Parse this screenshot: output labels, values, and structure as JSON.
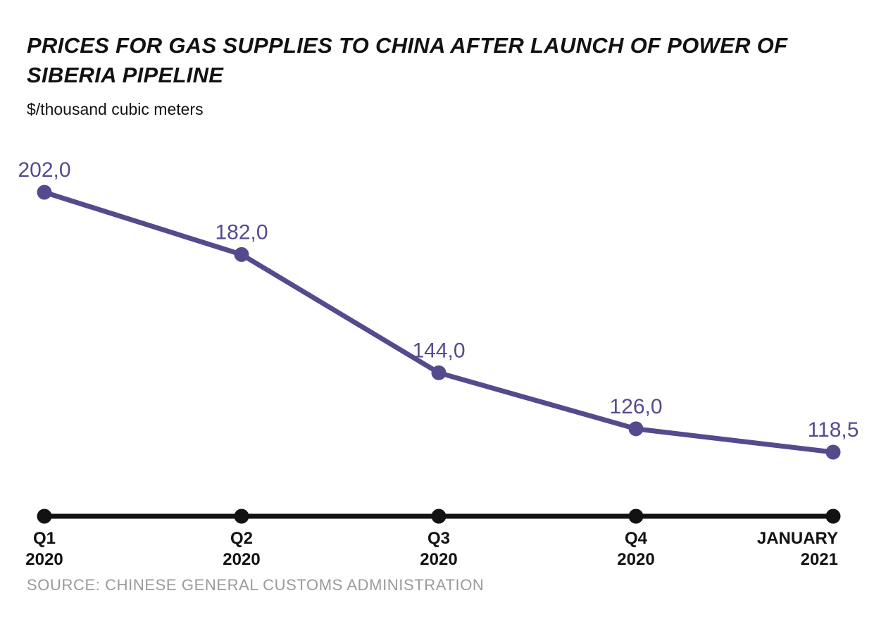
{
  "header": {
    "title": "PRICES FOR GAS SUPPLIES TO CHINA AFTER LAUNCH OF POWER OF SIBERIA PIPELINE",
    "title_lines": [
      "PRICES FOR GAS SUPPLIES TO CHINA AFTER LAUNCH OF POWER OF",
      "SIBERIA PIPELINE"
    ],
    "units_label": "$/thousand cubic meters"
  },
  "chart_data": {
    "type": "line",
    "title": "PRICES FOR GAS SUPPLIES TO CHINA AFTER LAUNCH OF POWER OF SIBERIA PIPELINE",
    "ylabel": "$/thousand cubic meters",
    "categories": [
      [
        "Q1",
        "2020"
      ],
      [
        "Q2",
        "2020"
      ],
      [
        "Q3",
        "2020"
      ],
      [
        "Q4",
        "2020"
      ],
      [
        "JANUARY",
        "2021"
      ]
    ],
    "values": [
      202.0,
      182.0,
      144.0,
      126.0,
      118.5
    ],
    "point_labels": [
      "202,0",
      "182,0",
      "144,0",
      "126,0",
      "118,5"
    ],
    "ylim": [
      118.5,
      202.0
    ],
    "grid": false,
    "legend": false,
    "yaxis_visible": false,
    "colors": {
      "series": "#564a8e",
      "axis": "#121212",
      "point_label": "#564a8e"
    }
  },
  "footer": {
    "source": "SOURCE: CHINESE GENERAL CUSTOMS ADMINISTRATION"
  }
}
